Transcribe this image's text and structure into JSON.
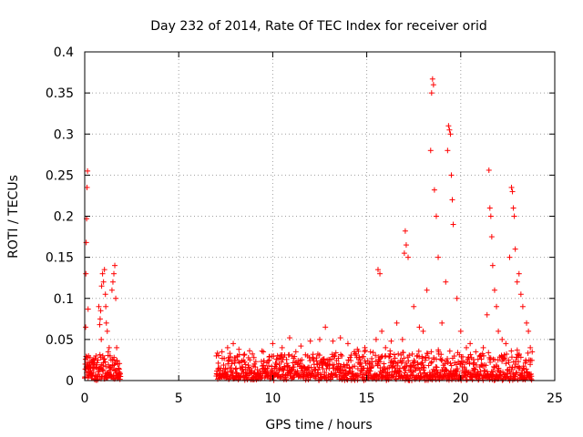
{
  "chart_data": {
    "type": "scatter",
    "title": "Day 232 of 2014, Rate Of TEC Index for receiver orid",
    "xlabel": "GPS time / hours",
    "ylabel": "ROTI / TECUs",
    "xlim": [
      0,
      25
    ],
    "ylim": [
      0,
      0.4
    ],
    "xticks": [
      0,
      5,
      10,
      15,
      20,
      25
    ],
    "xtick_labels": [
      "0",
      "5",
      "10",
      "15",
      "20",
      "25"
    ],
    "yticks": [
      0,
      0.05,
      0.1,
      0.15,
      0.2,
      0.25,
      0.3,
      0.35,
      0.4
    ],
    "ytick_labels": [
      "0",
      "0.05",
      "0.1",
      "0.15",
      "0.2",
      "0.25",
      "0.3",
      "0.35",
      "0.4"
    ],
    "grid": true,
    "marker": "+",
    "marker_color": "#ff0000",
    "series": [
      {
        "name": "ROTI",
        "note": "dense baseline 0-0.04 TECU during 0-1.9 h and 7.0-23.8 h; data gap 1.9-7.0 h",
        "x": [
          0.03,
          0.05,
          0.06,
          0.08,
          0.1,
          0.12,
          0.15,
          0.18,
          0.2,
          0.22,
          0.25,
          0.28,
          0.32,
          0.36,
          0.4,
          0.45,
          0.5,
          0.6,
          0.7,
          0.75,
          0.8,
          0.82,
          0.85,
          0.88,
          0.9,
          0.95,
          1.0,
          1.05,
          1.1,
          1.12,
          1.15,
          1.2,
          1.25,
          1.3,
          1.35,
          1.4,
          1.45,
          1.5,
          1.55,
          1.6,
          1.65,
          1.7,
          1.75,
          1.8,
          1.85,
          1.9,
          7.0,
          7.3,
          7.6,
          7.9,
          8.2,
          8.5,
          9.0,
          9.5,
          10.0,
          10.5,
          10.9,
          11.5,
          12.0,
          12.5,
          12.8,
          13.2,
          13.6,
          14.0,
          14.5,
          14.9,
          15.2,
          15.5,
          15.6,
          15.7,
          15.8,
          16.0,
          16.3,
          16.6,
          16.9,
          17.0,
          17.05,
          17.1,
          17.2,
          17.5,
          17.8,
          18.0,
          18.2,
          18.4,
          18.45,
          18.5,
          18.55,
          18.6,
          18.7,
          18.8,
          19.0,
          19.2,
          19.3,
          19.35,
          19.4,
          19.45,
          19.5,
          19.55,
          19.6,
          19.8,
          20.0,
          20.3,
          20.5,
          20.8,
          21.0,
          21.2,
          21.4,
          21.5,
          21.55,
          21.6,
          21.65,
          21.7,
          21.8,
          21.9,
          22.0,
          22.2,
          22.4,
          22.6,
          22.7,
          22.75,
          22.8,
          22.85,
          22.9,
          23.0,
          23.1,
          23.2,
          23.3,
          23.5,
          23.6,
          23.7,
          23.8
        ],
        "y": [
          0.02,
          0.065,
          0.13,
          0.168,
          0.197,
          0.235,
          0.255,
          0.087,
          0.03,
          0.015,
          0.02,
          0.012,
          0.01,
          0.008,
          0.015,
          0.01,
          0.02,
          0.03,
          0.025,
          0.09,
          0.068,
          0.075,
          0.085,
          0.05,
          0.115,
          0.13,
          0.12,
          0.135,
          0.105,
          0.09,
          0.07,
          0.06,
          0.035,
          0.04,
          0.03,
          0.025,
          0.11,
          0.12,
          0.13,
          0.14,
          0.1,
          0.04,
          0.02,
          0.015,
          0.01,
          0.005,
          0.03,
          0.035,
          0.04,
          0.045,
          0.038,
          0.032,
          0.028,
          0.035,
          0.045,
          0.04,
          0.052,
          0.042,
          0.048,
          0.05,
          0.065,
          0.048,
          0.052,
          0.045,
          0.038,
          0.04,
          0.035,
          0.05,
          0.135,
          0.13,
          0.06,
          0.04,
          0.048,
          0.07,
          0.05,
          0.155,
          0.182,
          0.165,
          0.15,
          0.09,
          0.065,
          0.06,
          0.11,
          0.28,
          0.35,
          0.367,
          0.36,
          0.232,
          0.2,
          0.15,
          0.07,
          0.12,
          0.28,
          0.31,
          0.305,
          0.3,
          0.25,
          0.22,
          0.19,
          0.1,
          0.06,
          0.04,
          0.045,
          0.035,
          0.03,
          0.04,
          0.08,
          0.256,
          0.21,
          0.2,
          0.175,
          0.14,
          0.11,
          0.09,
          0.06,
          0.05,
          0.045,
          0.15,
          0.235,
          0.23,
          0.21,
          0.2,
          0.16,
          0.12,
          0.13,
          0.105,
          0.09,
          0.07,
          0.06,
          0.04,
          0.035
        ]
      }
    ]
  }
}
